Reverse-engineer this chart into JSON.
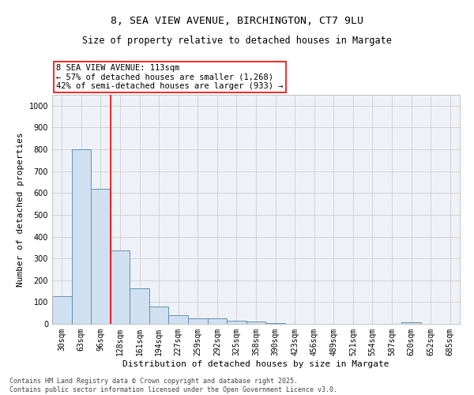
{
  "title1": "8, SEA VIEW AVENUE, BIRCHINGTON, CT7 9LU",
  "title2": "Size of property relative to detached houses in Margate",
  "xlabel": "Distribution of detached houses by size in Margate",
  "ylabel": "Number of detached properties",
  "categories": [
    "30sqm",
    "63sqm",
    "96sqm",
    "128sqm",
    "161sqm",
    "194sqm",
    "227sqm",
    "259sqm",
    "292sqm",
    "325sqm",
    "358sqm",
    "390sqm",
    "423sqm",
    "456sqm",
    "489sqm",
    "521sqm",
    "554sqm",
    "587sqm",
    "620sqm",
    "652sqm",
    "685sqm"
  ],
  "values": [
    125,
    800,
    620,
    335,
    163,
    80,
    40,
    27,
    27,
    15,
    10,
    4,
    0,
    0,
    0,
    0,
    0,
    0,
    7,
    0,
    0
  ],
  "bar_color": "#d0e0f0",
  "bar_edge_color": "#6090b0",
  "vline_color": "red",
  "vline_x_index": 2.5,
  "annotation_text": "8 SEA VIEW AVENUE: 113sqm\n← 57% of detached houses are smaller (1,268)\n42% of semi-detached houses are larger (933) →",
  "annotation_box_color": "white",
  "annotation_box_edge": "red",
  "ylim": [
    0,
    1050
  ],
  "yticks": [
    0,
    100,
    200,
    300,
    400,
    500,
    600,
    700,
    800,
    900,
    1000
  ],
  "grid_color": "#cccccc",
  "bg_color": "#eef2f8",
  "footer1": "Contains HM Land Registry data © Crown copyright and database right 2025.",
  "footer2": "Contains public sector information licensed under the Open Government Licence v3.0.",
  "title_fontsize": 9.5,
  "subtitle_fontsize": 8.5,
  "axis_label_fontsize": 8,
  "tick_fontsize": 7,
  "annotation_fontsize": 7.5,
  "footer_fontsize": 6
}
